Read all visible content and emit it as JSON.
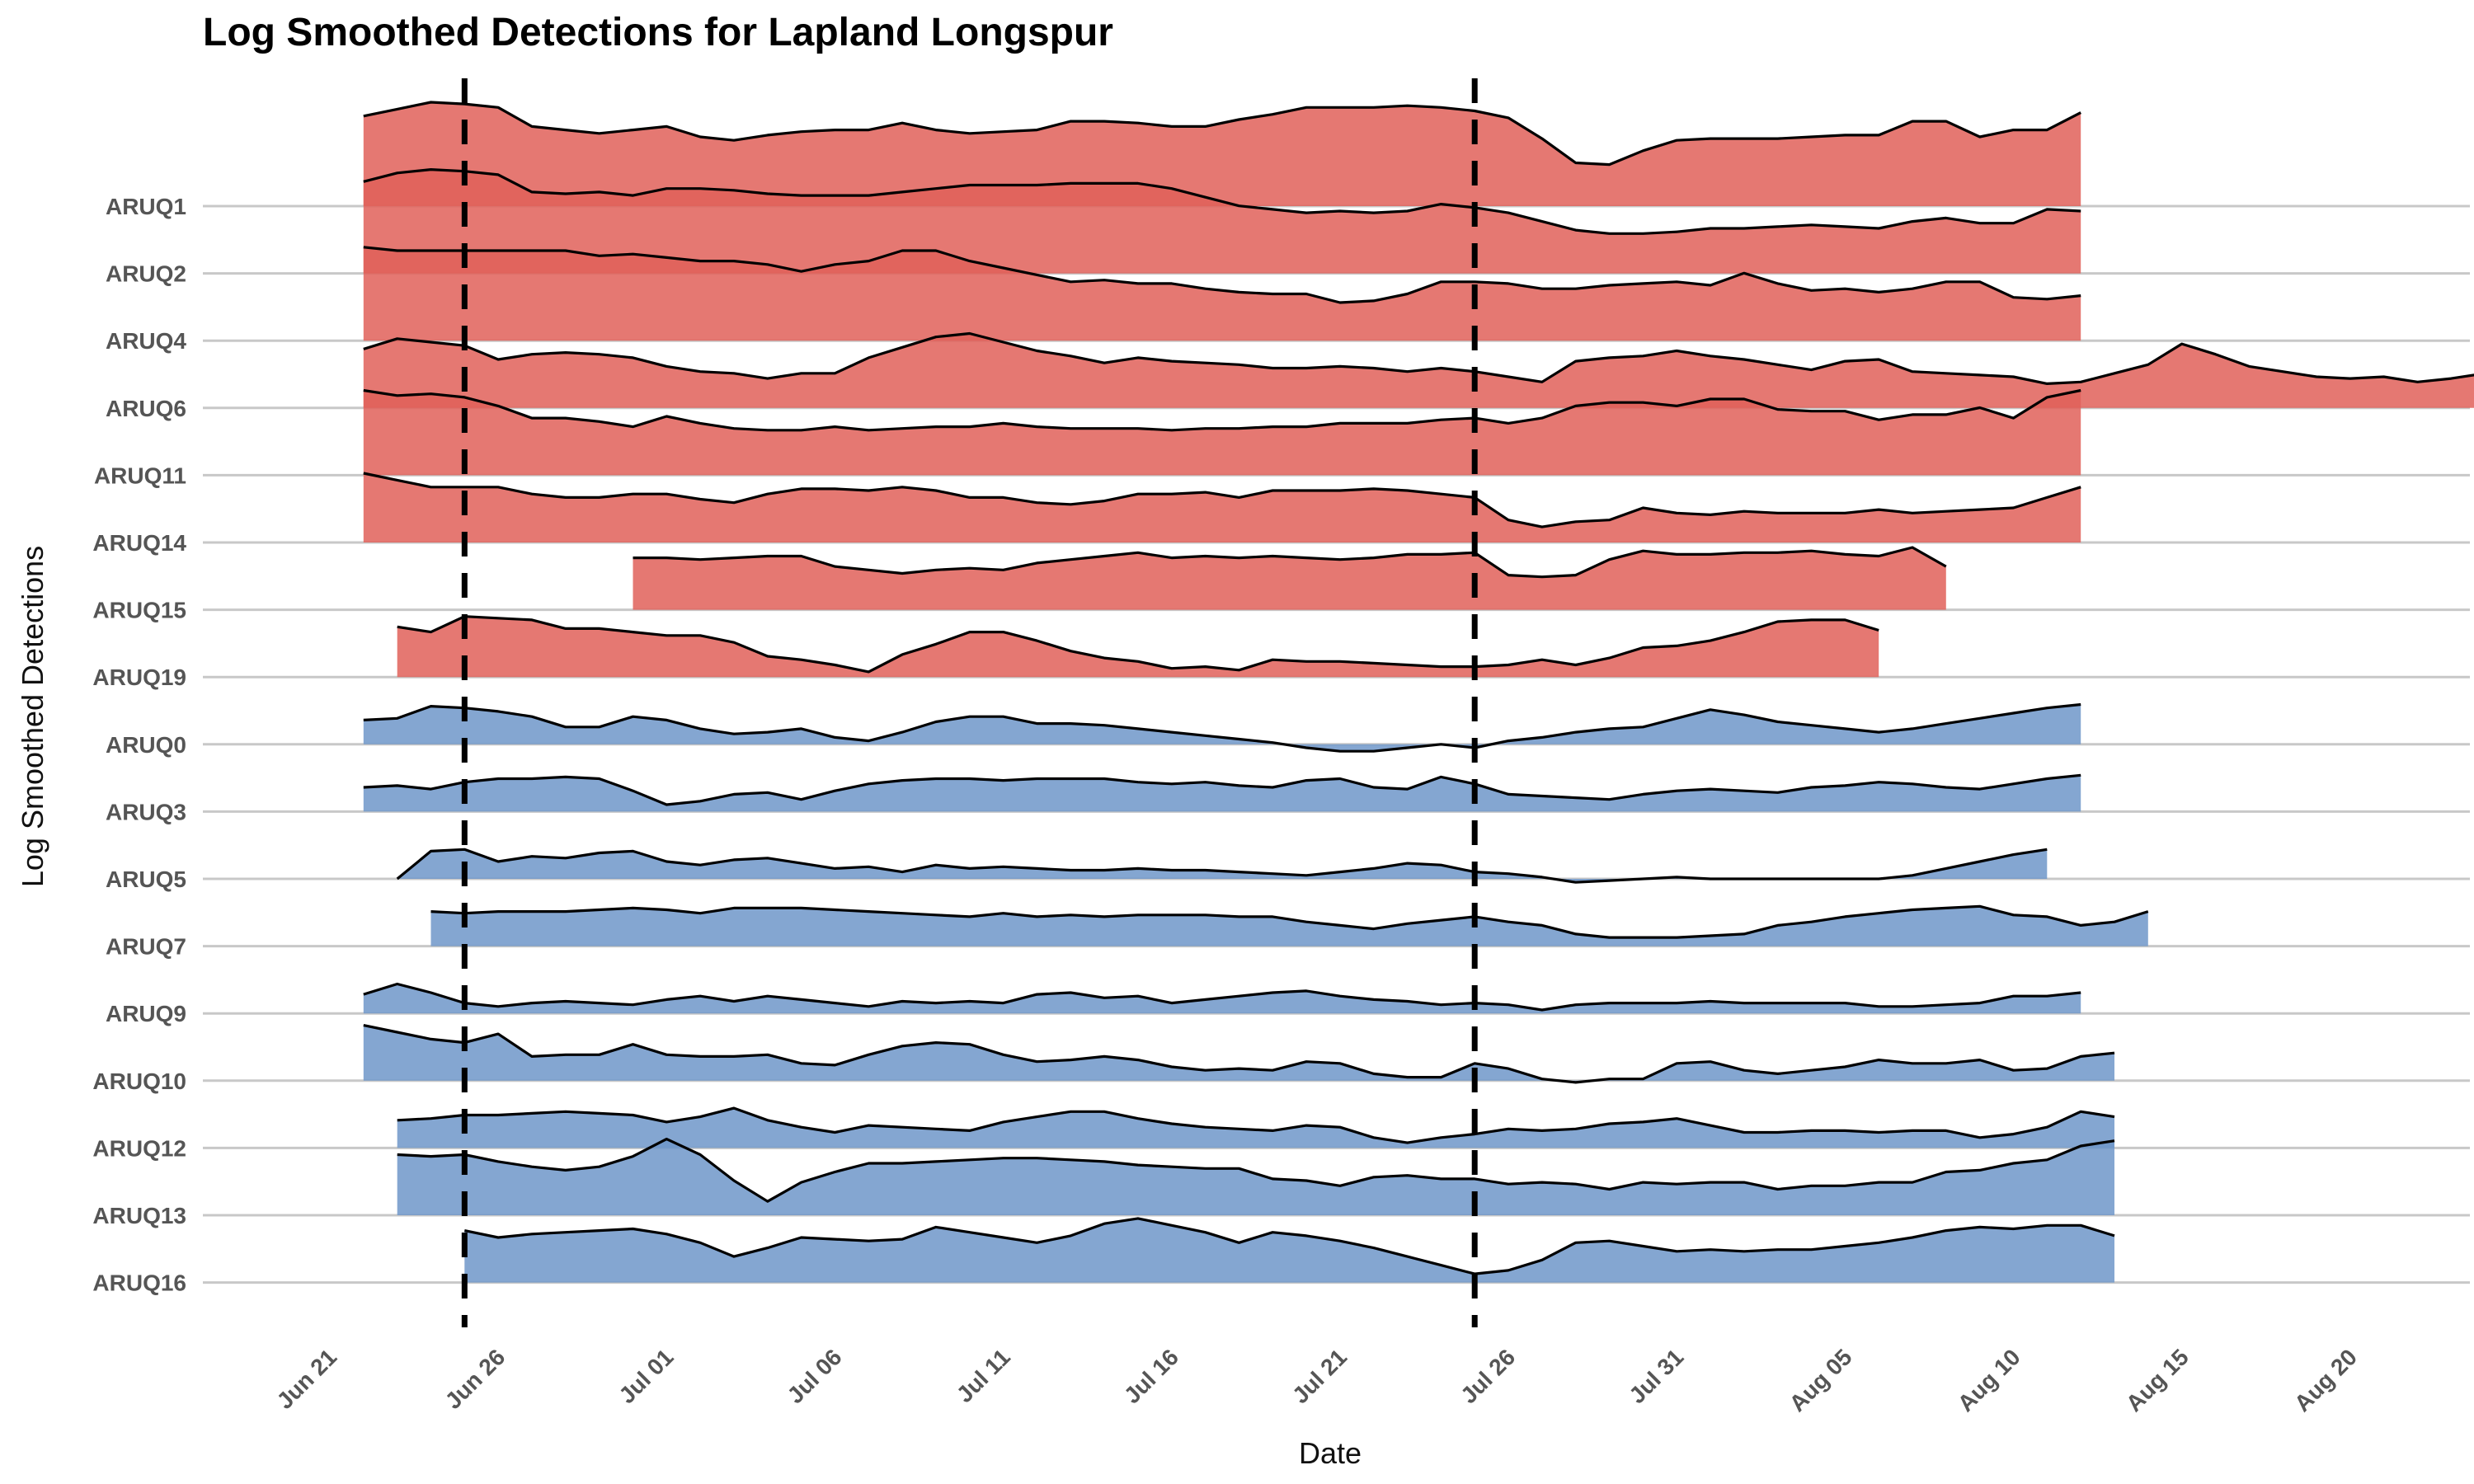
{
  "chart_data": {
    "type": "area",
    "title": "Log Smoothed Detections for Lapland Longspur",
    "xlabel": "Date",
    "ylabel": "Log Smoothed Detections",
    "x_ticks": [
      "Jun 21",
      "Jun 26",
      "Jul 01",
      "Jul 06",
      "Jul 11",
      "Jul 16",
      "Jul 21",
      "Jul 26",
      "Jul 31",
      "Aug 05",
      "Aug 10",
      "Aug 15",
      "Aug 20"
    ],
    "grid": true,
    "legend": "none",
    "reference_lines": [
      "2024-06-25",
      "2024-07-25"
    ],
    "colors": {
      "red_group": "#e06059",
      "red_line_fill": "#d93a30",
      "blue_group": "#6f97c9",
      "blue_line_fill": "#4a7ab8"
    },
    "series": [
      {
        "name": "ARUQ1",
        "group": "red",
        "start": "2024-06-22",
        "end": "2024-08-11",
        "values": [
          2.6,
          2.8,
          3.0,
          2.95,
          2.85,
          2.3,
          2.2,
          2.1,
          2.2,
          2.3,
          2.0,
          1.9,
          2.05,
          2.15,
          2.2,
          2.2,
          2.4,
          2.2,
          2.1,
          2.15,
          2.2,
          2.45,
          2.45,
          2.4,
          2.3,
          2.3,
          2.5,
          2.65,
          2.85,
          2.85,
          2.85,
          2.9,
          2.85,
          2.75,
          2.55,
          1.95,
          1.25,
          1.2,
          1.6,
          1.9,
          1.95,
          1.95,
          1.95,
          2.0,
          2.05,
          2.05,
          2.45,
          2.45,
          2.0,
          2.2,
          2.2,
          2.7
        ]
      },
      {
        "name": "ARUQ2",
        "group": "red",
        "start": "2024-06-22",
        "end": "2024-08-11",
        "values": [
          2.65,
          2.9,
          3.0,
          2.95,
          2.85,
          2.35,
          2.3,
          2.35,
          2.25,
          2.45,
          2.45,
          2.4,
          2.3,
          2.25,
          2.25,
          2.25,
          2.35,
          2.45,
          2.55,
          2.55,
          2.55,
          2.6,
          2.6,
          2.6,
          2.45,
          2.2,
          1.95,
          1.85,
          1.75,
          1.8,
          1.75,
          1.8,
          2.0,
          1.9,
          1.75,
          1.5,
          1.25,
          1.15,
          1.15,
          1.2,
          1.3,
          1.3,
          1.35,
          1.4,
          1.35,
          1.3,
          1.5,
          1.6,
          1.45,
          1.45,
          1.85,
          1.8
        ]
      },
      {
        "name": "ARUQ4",
        "group": "red",
        "start": "2024-06-22",
        "end": "2024-08-11",
        "values": [
          2.7,
          2.6,
          2.6,
          2.6,
          2.6,
          2.6,
          2.6,
          2.45,
          2.5,
          2.4,
          2.3,
          2.3,
          2.2,
          2.0,
          2.2,
          2.3,
          2.6,
          2.6,
          2.3,
          2.1,
          1.9,
          1.7,
          1.75,
          1.65,
          1.65,
          1.5,
          1.4,
          1.35,
          1.35,
          1.1,
          1.15,
          1.35,
          1.7,
          1.7,
          1.65,
          1.5,
          1.5,
          1.6,
          1.65,
          1.7,
          1.6,
          1.95,
          1.65,
          1.45,
          1.5,
          1.4,
          1.5,
          1.7,
          1.7,
          1.25,
          1.2,
          1.3
        ]
      },
      {
        "name": "ARUQ6",
        "group": "red",
        "start": "2024-06-22",
        "end": "2024-08-22",
        "values": [
          1.7,
          2.0,
          1.9,
          1.8,
          1.4,
          1.55,
          1.6,
          1.55,
          1.45,
          1.2,
          1.05,
          1.0,
          0.85,
          1.0,
          1.0,
          1.45,
          1.75,
          2.05,
          2.15,
          1.9,
          1.65,
          1.5,
          1.3,
          1.45,
          1.35,
          1.3,
          1.25,
          1.15,
          1.15,
          1.2,
          1.15,
          1.05,
          1.15,
          1.05,
          0.9,
          0.75,
          1.35,
          1.45,
          1.5,
          1.65,
          1.5,
          1.4,
          1.25,
          1.1,
          1.35,
          1.4,
          1.05,
          1.0,
          0.95,
          0.9,
          0.7,
          0.75,
          1.0,
          1.25,
          1.85,
          1.55,
          1.2,
          1.05,
          0.9,
          0.85,
          0.9,
          0.75,
          0.85,
          1.0
        ]
      },
      {
        "name": "ARUQ11",
        "group": "red",
        "start": "2024-06-22",
        "end": "2024-08-11",
        "values": [
          2.45,
          2.3,
          2.35,
          2.25,
          2.0,
          1.65,
          1.65,
          1.55,
          1.4,
          1.7,
          1.5,
          1.35,
          1.3,
          1.3,
          1.4,
          1.3,
          1.35,
          1.4,
          1.4,
          1.5,
          1.4,
          1.35,
          1.35,
          1.35,
          1.3,
          1.35,
          1.35,
          1.4,
          1.4,
          1.5,
          1.5,
          1.5,
          1.6,
          1.65,
          1.5,
          1.65,
          2.0,
          2.1,
          2.1,
          2.0,
          2.2,
          2.2,
          1.9,
          1.85,
          1.85,
          1.6,
          1.75,
          1.75,
          1.95,
          1.65,
          2.25,
          2.45
        ]
      },
      {
        "name": "ARUQ14",
        "group": "red",
        "start": "2024-06-22",
        "end": "2024-08-11",
        "values": [
          2.0,
          1.8,
          1.6,
          1.6,
          1.6,
          1.4,
          1.3,
          1.3,
          1.4,
          1.4,
          1.25,
          1.15,
          1.4,
          1.55,
          1.55,
          1.5,
          1.6,
          1.5,
          1.3,
          1.3,
          1.15,
          1.1,
          1.2,
          1.4,
          1.4,
          1.45,
          1.3,
          1.5,
          1.5,
          1.5,
          1.55,
          1.5,
          1.4,
          1.3,
          0.65,
          0.45,
          0.6,
          0.65,
          1.0,
          0.85,
          0.8,
          0.9,
          0.85,
          0.85,
          0.85,
          0.95,
          0.85,
          0.9,
          0.95,
          1.0,
          1.3,
          1.6
        ]
      },
      {
        "name": "ARUQ15",
        "group": "red",
        "start": "2024-06-30",
        "end": "2024-08-07",
        "values": [
          1.5,
          1.5,
          1.45,
          1.5,
          1.55,
          1.55,
          1.25,
          1.15,
          1.05,
          1.15,
          1.2,
          1.15,
          1.35,
          1.45,
          1.55,
          1.65,
          1.5,
          1.55,
          1.5,
          1.55,
          1.5,
          1.45,
          1.5,
          1.6,
          1.6,
          1.65,
          1.0,
          0.95,
          1.0,
          1.45,
          1.7,
          1.6,
          1.6,
          1.65,
          1.65,
          1.7,
          1.6,
          1.55,
          1.8,
          1.25
        ]
      },
      {
        "name": "ARUQ19",
        "group": "red",
        "start": "2024-06-23",
        "end": "2024-08-07",
        "values": [
          1.45,
          1.3,
          1.75,
          1.7,
          1.65,
          1.4,
          1.4,
          1.3,
          1.2,
          1.2,
          1.0,
          0.6,
          0.5,
          0.35,
          0.15,
          0.65,
          0.95,
          1.3,
          1.3,
          1.05,
          0.75,
          0.55,
          0.45,
          0.25,
          0.3,
          0.2,
          0.5,
          0.45,
          0.45,
          0.4,
          0.35,
          0.3,
          0.3,
          0.35,
          0.5,
          0.35,
          0.55,
          0.85,
          0.9,
          1.05,
          1.3,
          1.6,
          1.65,
          1.65,
          1.35
        ]
      },
      {
        "name": "ARUQ0",
        "group": "blue",
        "start": "2024-06-22",
        "end": "2024-08-11",
        "values": [
          0.7,
          0.75,
          1.1,
          1.05,
          0.95,
          0.8,
          0.5,
          0.5,
          0.8,
          0.7,
          0.45,
          0.3,
          0.35,
          0.45,
          0.2,
          0.1,
          0.35,
          0.65,
          0.8,
          0.8,
          0.6,
          0.6,
          0.55,
          0.45,
          0.35,
          0.25,
          0.15,
          0.05,
          -0.1,
          -0.2,
          -0.2,
          -0.1,
          0.0,
          -0.1,
          0.1,
          0.2,
          0.35,
          0.45,
          0.5,
          0.75,
          1.0,
          0.85,
          0.65,
          0.55,
          0.45,
          0.35,
          0.45,
          0.6,
          0.75,
          0.9,
          1.05,
          1.15
        ]
      },
      {
        "name": "ARUQ3",
        "group": "blue",
        "start": "2024-06-22",
        "end": "2024-08-11",
        "values": [
          0.7,
          0.75,
          0.65,
          0.85,
          0.95,
          0.95,
          1.0,
          0.95,
          0.6,
          0.2,
          0.3,
          0.5,
          0.55,
          0.35,
          0.6,
          0.8,
          0.9,
          0.95,
          0.95,
          0.9,
          0.95,
          0.95,
          0.95,
          0.85,
          0.8,
          0.85,
          0.75,
          0.7,
          0.9,
          0.95,
          0.7,
          0.65,
          1.0,
          0.8,
          0.5,
          0.45,
          0.4,
          0.35,
          0.5,
          0.6,
          0.65,
          0.6,
          0.55,
          0.7,
          0.75,
          0.85,
          0.8,
          0.7,
          0.65,
          0.8,
          0.95,
          1.05
        ]
      },
      {
        "name": "ARUQ5",
        "group": "blue",
        "start": "2024-06-23",
        "end": "2024-08-10",
        "values": [
          0.0,
          0.8,
          0.85,
          0.5,
          0.65,
          0.6,
          0.75,
          0.8,
          0.5,
          0.4,
          0.55,
          0.6,
          0.45,
          0.3,
          0.35,
          0.2,
          0.4,
          0.3,
          0.35,
          0.3,
          0.25,
          0.25,
          0.3,
          0.25,
          0.25,
          0.2,
          0.15,
          0.1,
          0.2,
          0.3,
          0.45,
          0.4,
          0.2,
          0.15,
          0.05,
          -0.1,
          -0.05,
          0.0,
          0.05,
          0.0,
          0.0,
          0.0,
          0.0,
          0.0,
          0.0,
          0.1,
          0.3,
          0.5,
          0.7,
          0.85
        ]
      },
      {
        "name": "ARUQ7",
        "group": "blue",
        "start": "2024-06-24",
        "end": "2024-08-11",
        "values": [
          1.0,
          0.95,
          1.0,
          1.0,
          1.0,
          1.05,
          1.1,
          1.05,
          0.95,
          1.1,
          1.1,
          1.1,
          1.05,
          1.0,
          0.95,
          0.9,
          0.85,
          0.95,
          0.85,
          0.9,
          0.85,
          0.9,
          0.9,
          0.9,
          0.85,
          0.85,
          0.7,
          0.6,
          0.5,
          0.65,
          0.75,
          0.85,
          0.7,
          0.6,
          0.35,
          0.25,
          0.25,
          0.25,
          0.3,
          0.35,
          0.6,
          0.7,
          0.85,
          0.95,
          1.05,
          1.1,
          1.15,
          0.9,
          0.85,
          0.6,
          0.7,
          1.0
        ]
      },
      {
        "name": "ARUQ9",
        "group": "blue",
        "start": "2024-06-22",
        "end": "2024-08-11",
        "values": [
          0.55,
          0.85,
          0.6,
          0.3,
          0.2,
          0.3,
          0.35,
          0.3,
          0.25,
          0.4,
          0.5,
          0.35,
          0.5,
          0.4,
          0.3,
          0.2,
          0.35,
          0.3,
          0.35,
          0.3,
          0.55,
          0.6,
          0.45,
          0.5,
          0.3,
          0.4,
          0.5,
          0.6,
          0.65,
          0.5,
          0.4,
          0.35,
          0.25,
          0.3,
          0.25,
          0.1,
          0.25,
          0.3,
          0.3,
          0.3,
          0.35,
          0.3,
          0.3,
          0.3,
          0.3,
          0.2,
          0.2,
          0.25,
          0.3,
          0.5,
          0.5,
          0.6
        ]
      },
      {
        "name": "ARUQ10",
        "group": "blue",
        "start": "2024-06-22",
        "end": "2024-08-12",
        "values": [
          1.6,
          1.4,
          1.2,
          1.1,
          1.35,
          0.7,
          0.75,
          0.75,
          1.05,
          0.75,
          0.7,
          0.7,
          0.75,
          0.5,
          0.45,
          0.75,
          1.0,
          1.1,
          1.05,
          0.75,
          0.55,
          0.6,
          0.7,
          0.6,
          0.4,
          0.3,
          0.35,
          0.3,
          0.55,
          0.5,
          0.2,
          0.1,
          0.1,
          0.5,
          0.35,
          0.05,
          -0.05,
          0.05,
          0.05,
          0.5,
          0.55,
          0.3,
          0.2,
          0.3,
          0.4,
          0.6,
          0.5,
          0.5,
          0.6,
          0.3,
          0.35,
          0.7,
          0.8
        ]
      },
      {
        "name": "ARUQ12",
        "group": "blue",
        "start": "2024-06-23",
        "end": "2024-08-11",
        "values": [
          0.8,
          0.85,
          0.95,
          0.95,
          1.0,
          1.05,
          1.0,
          0.95,
          0.75,
          0.9,
          1.15,
          0.8,
          0.6,
          0.45,
          0.65,
          0.6,
          0.55,
          0.5,
          0.75,
          0.9,
          1.05,
          1.05,
          0.85,
          0.7,
          0.6,
          0.55,
          0.5,
          0.65,
          0.6,
          0.3,
          0.15,
          0.3,
          0.4,
          0.55,
          0.5,
          0.55,
          0.7,
          0.75,
          0.85,
          0.65,
          0.45,
          0.45,
          0.5,
          0.5,
          0.45,
          0.5,
          0.5,
          0.3,
          0.4,
          0.6,
          1.05,
          0.9
        ]
      },
      {
        "name": "ARUQ13",
        "group": "blue",
        "start": "2024-06-23",
        "end": "2024-08-11",
        "values": [
          1.75,
          1.7,
          1.75,
          1.55,
          1.4,
          1.3,
          1.4,
          1.7,
          2.2,
          1.75,
          1.0,
          0.4,
          0.95,
          1.25,
          1.5,
          1.5,
          1.55,
          1.6,
          1.65,
          1.65,
          1.6,
          1.55,
          1.45,
          1.4,
          1.35,
          1.35,
          1.05,
          1.0,
          0.85,
          1.1,
          1.15,
          1.05,
          1.05,
          0.9,
          0.95,
          0.9,
          0.75,
          0.95,
          0.9,
          0.95,
          0.95,
          0.75,
          0.85,
          0.85,
          0.95,
          0.95,
          1.25,
          1.3,
          1.5,
          1.6,
          2.0,
          2.15
        ]
      },
      {
        "name": "ARUQ16",
        "group": "blue",
        "start": "2024-06-25",
        "end": "2024-08-10",
        "values": [
          1.5,
          1.3,
          1.4,
          1.45,
          1.5,
          1.55,
          1.4,
          1.15,
          0.75,
          1.0,
          1.3,
          1.25,
          1.2,
          1.25,
          1.6,
          1.45,
          1.3,
          1.15,
          1.35,
          1.7,
          1.85,
          1.65,
          1.45,
          1.15,
          1.45,
          1.35,
          1.2,
          1.0,
          0.75,
          0.5,
          0.25,
          0.35,
          0.65,
          1.15,
          1.2,
          1.05,
          0.9,
          0.95,
          0.9,
          0.95,
          0.95,
          1.05,
          1.15,
          1.3,
          1.5,
          1.6,
          1.55,
          1.65,
          1.65,
          1.35
        ]
      }
    ]
  }
}
